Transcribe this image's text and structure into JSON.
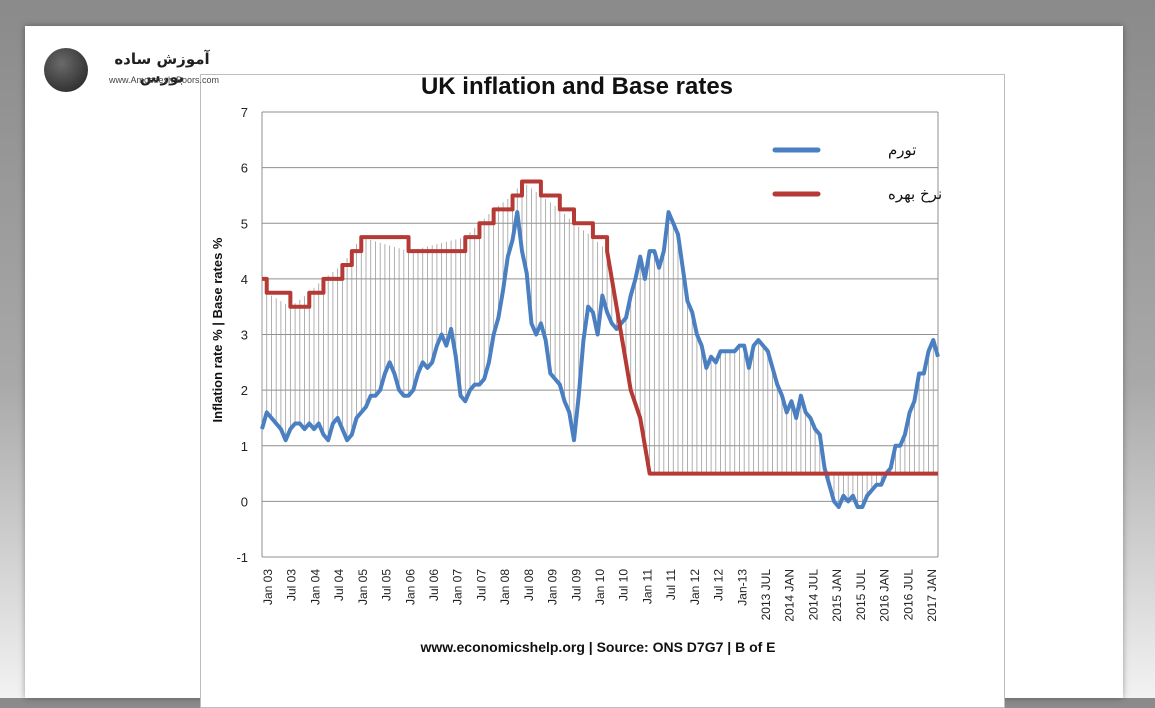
{
  "logo": {
    "title": "آموزش ساده بورس",
    "url": "www.Amoozesh-Boors.com"
  },
  "chart_data": {
    "type": "line",
    "title": "UK inflation and Base rates",
    "ylabel": "Inflation rate % | Base rates %",
    "xlabel": "",
    "ylim": [
      -1,
      7
    ],
    "yticks": [
      -1,
      0,
      1,
      2,
      3,
      4,
      5,
      6,
      7
    ],
    "x_tick_labels": [
      "Jan 03",
      "Jul 03",
      "Jan 04",
      "Jul 04",
      "Jan 05",
      "Jul 05",
      "Jan 06",
      "Jul 06",
      "Jan 07",
      "Jul 07",
      "Jan 08",
      "Jul 08",
      "Jan 09",
      "Jul 09",
      "Jan 10",
      "Jul 10",
      "Jan 11",
      "Jul 11",
      "Jan 12",
      "Jul 12",
      "Jan-13",
      "2013 JUL",
      "2014 JAN",
      "2014 JUL",
      "2015 JAN",
      "2015 JUL",
      "2016 JAN",
      "2016 JUL",
      "2017 JAN"
    ],
    "grid": true,
    "legend_position": "top-right",
    "source_note": "www.economicshelp.org | Source: ONS D7G7 | B of E",
    "series": [
      {
        "name": "تورم",
        "color": "#4a7fc1",
        "points": [
          [
            0,
            1.3
          ],
          [
            1,
            1.6
          ],
          [
            2,
            1.5
          ],
          [
            3,
            1.4
          ],
          [
            4,
            1.3
          ],
          [
            5,
            1.1
          ],
          [
            6,
            1.3
          ],
          [
            7,
            1.4
          ],
          [
            8,
            1.4
          ],
          [
            9,
            1.3
          ],
          [
            10,
            1.4
          ],
          [
            11,
            1.3
          ],
          [
            12,
            1.4
          ],
          [
            13,
            1.2
          ],
          [
            14,
            1.1
          ],
          [
            15,
            1.4
          ],
          [
            16,
            1.5
          ],
          [
            17,
            1.3
          ],
          [
            18,
            1.1
          ],
          [
            19,
            1.2
          ],
          [
            20,
            1.5
          ],
          [
            21,
            1.6
          ],
          [
            22,
            1.7
          ],
          [
            23,
            1.9
          ],
          [
            24,
            1.9
          ],
          [
            25,
            2.0
          ],
          [
            26,
            2.3
          ],
          [
            27,
            2.5
          ],
          [
            28,
            2.3
          ],
          [
            29,
            2.0
          ],
          [
            30,
            1.9
          ],
          [
            31,
            1.9
          ],
          [
            32,
            2.0
          ],
          [
            33,
            2.3
          ],
          [
            34,
            2.5
          ],
          [
            35,
            2.4
          ],
          [
            36,
            2.5
          ],
          [
            37,
            2.8
          ],
          [
            38,
            3.0
          ],
          [
            39,
            2.8
          ],
          [
            40,
            3.1
          ],
          [
            41,
            2.6
          ],
          [
            42,
            1.9
          ],
          [
            43,
            1.8
          ],
          [
            44,
            2.0
          ],
          [
            45,
            2.1
          ],
          [
            46,
            2.1
          ],
          [
            47,
            2.2
          ],
          [
            48,
            2.5
          ],
          [
            49,
            3.0
          ],
          [
            50,
            3.3
          ],
          [
            51,
            3.8
          ],
          [
            52,
            4.4
          ],
          [
            53,
            4.7
          ],
          [
            54,
            5.2
          ],
          [
            55,
            4.5
          ],
          [
            56,
            4.1
          ],
          [
            57,
            3.2
          ],
          [
            58,
            3.0
          ],
          [
            59,
            3.2
          ],
          [
            60,
            2.9
          ],
          [
            61,
            2.3
          ],
          [
            62,
            2.2
          ],
          [
            63,
            2.1
          ],
          [
            64,
            1.8
          ],
          [
            65,
            1.6
          ],
          [
            66,
            1.1
          ],
          [
            67,
            1.9
          ],
          [
            68,
            2.9
          ],
          [
            69,
            3.5
          ],
          [
            70,
            3.4
          ],
          [
            71,
            3.0
          ],
          [
            72,
            3.7
          ],
          [
            73,
            3.4
          ],
          [
            74,
            3.2
          ],
          [
            75,
            3.1
          ],
          [
            76,
            3.2
          ],
          [
            77,
            3.3
          ],
          [
            78,
            3.7
          ],
          [
            79,
            4.0
          ],
          [
            80,
            4.4
          ],
          [
            81,
            4.0
          ],
          [
            82,
            4.5
          ],
          [
            83,
            4.5
          ],
          [
            84,
            4.2
          ],
          [
            85,
            4.5
          ],
          [
            86,
            5.2
          ],
          [
            87,
            5.0
          ],
          [
            88,
            4.8
          ],
          [
            89,
            4.2
          ],
          [
            90,
            3.6
          ],
          [
            91,
            3.4
          ],
          [
            92,
            3.0
          ],
          [
            93,
            2.8
          ],
          [
            94,
            2.4
          ],
          [
            95,
            2.6
          ],
          [
            96,
            2.5
          ],
          [
            97,
            2.7
          ],
          [
            98,
            2.7
          ],
          [
            99,
            2.7
          ],
          [
            100,
            2.7
          ],
          [
            101,
            2.8
          ],
          [
            102,
            2.8
          ],
          [
            103,
            2.4
          ],
          [
            104,
            2.8
          ],
          [
            105,
            2.9
          ],
          [
            106,
            2.8
          ],
          [
            107,
            2.7
          ],
          [
            108,
            2.4
          ],
          [
            109,
            2.1
          ],
          [
            110,
            1.9
          ],
          [
            111,
            1.6
          ],
          [
            112,
            1.8
          ],
          [
            113,
            1.5
          ],
          [
            114,
            1.9
          ],
          [
            115,
            1.6
          ],
          [
            116,
            1.5
          ],
          [
            117,
            1.3
          ],
          [
            118,
            1.2
          ],
          [
            119,
            0.6
          ],
          [
            120,
            0.3
          ],
          [
            121,
            0.0
          ],
          [
            122,
            -0.1
          ],
          [
            123,
            0.1
          ],
          [
            124,
            0.0
          ],
          [
            125,
            0.1
          ],
          [
            126,
            -0.1
          ],
          [
            127,
            -0.1
          ],
          [
            128,
            0.1
          ],
          [
            129,
            0.2
          ],
          [
            130,
            0.3
          ],
          [
            131,
            0.3
          ],
          [
            132,
            0.5
          ],
          [
            133,
            0.6
          ],
          [
            134,
            1.0
          ],
          [
            135,
            1.0
          ],
          [
            136,
            1.2
          ],
          [
            137,
            1.6
          ],
          [
            138,
            1.8
          ],
          [
            139,
            2.3
          ],
          [
            140,
            2.3
          ],
          [
            141,
            2.7
          ],
          [
            142,
            2.9
          ],
          [
            143,
            2.6
          ]
        ]
      },
      {
        "name": "نرخ بهره",
        "color": "#b53a36",
        "points": [
          [
            0,
            4.0
          ],
          [
            1,
            3.75
          ],
          [
            6,
            3.5
          ],
          [
            10,
            3.75
          ],
          [
            13,
            4.0
          ],
          [
            17,
            4.25
          ],
          [
            19,
            4.5
          ],
          [
            21,
            4.75
          ],
          [
            31,
            4.5
          ],
          [
            43,
            4.75
          ],
          [
            46,
            5.0
          ],
          [
            49,
            5.25
          ],
          [
            53,
            5.5
          ],
          [
            55,
            5.75
          ],
          [
            59,
            5.5
          ],
          [
            63,
            5.25
          ],
          [
            66,
            5.0
          ],
          [
            70,
            4.75
          ],
          [
            73,
            4.5
          ],
          [
            76,
            3.0
          ],
          [
            78,
            2.0
          ],
          [
            80,
            1.5
          ],
          [
            81,
            1.0
          ],
          [
            82,
            0.5
          ],
          [
            143,
            0.5
          ]
        ]
      }
    ]
  }
}
